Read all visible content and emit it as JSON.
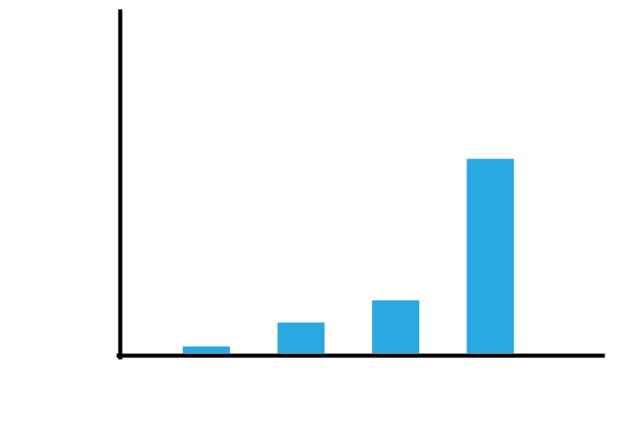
{
  "chart_data": {
    "type": "bar",
    "categories": [
      "",
      "",
      "",
      ""
    ],
    "values": [
      2,
      9,
      15.5,
      57
    ],
    "ylim": [
      0,
      100
    ],
    "grid": false,
    "legend": "none",
    "bar_color": "#29a9e1",
    "axis_color": "#000000"
  }
}
